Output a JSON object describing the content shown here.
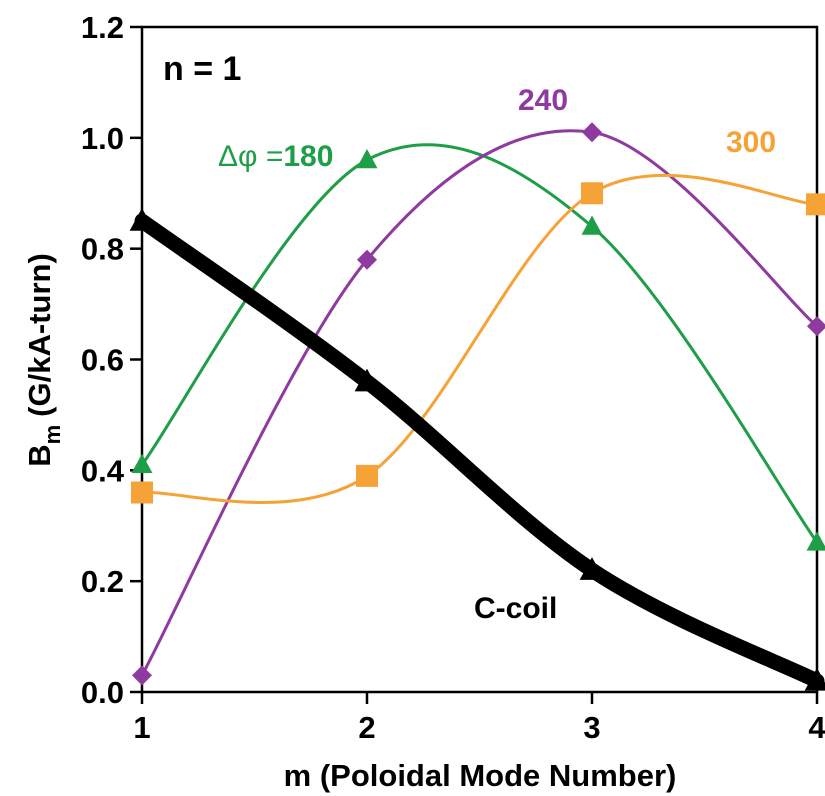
{
  "chart_data": {
    "type": "line",
    "xlabel": "m (Poloidal Mode Number)",
    "ylabel_main": "B",
    "ylabel_sub": "m",
    "ylabel_units": "(G/kA-turn)",
    "annotation": "n = 1",
    "xlim": [
      1,
      4
    ],
    "ylim": [
      0,
      1.2
    ],
    "x_ticks": [
      1,
      2,
      3,
      4
    ],
    "y_ticks": [
      "0.0",
      "0.2",
      "0.4",
      "0.6",
      "0.8",
      "1.0",
      "1.2"
    ],
    "grid": false,
    "series": [
      {
        "name": "C-coil",
        "label_text": "C-coil",
        "color": "#000000",
        "marker": "triangle",
        "x": [
          1,
          2,
          3,
          4
        ],
        "y": [
          0.85,
          0.56,
          0.22,
          0.02
        ]
      },
      {
        "name": "180",
        "label_prefix": "Δφ =",
        "label_text": "180",
        "color": "#1f9e48",
        "marker": "triangle",
        "x": [
          1,
          2,
          3,
          4
        ],
        "y": [
          0.41,
          0.96,
          0.84,
          0.27
        ]
      },
      {
        "name": "240",
        "label_text": "240",
        "color": "#8e3a9e",
        "marker": "diamond",
        "x": [
          1,
          2,
          3,
          4
        ],
        "y": [
          0.03,
          0.78,
          1.01,
          0.66
        ]
      },
      {
        "name": "300",
        "label_text": "300",
        "color": "#f5a236",
        "marker": "square",
        "x": [
          1,
          2,
          3,
          4
        ],
        "y": [
          0.36,
          0.39,
          0.9,
          0.88
        ]
      }
    ]
  }
}
